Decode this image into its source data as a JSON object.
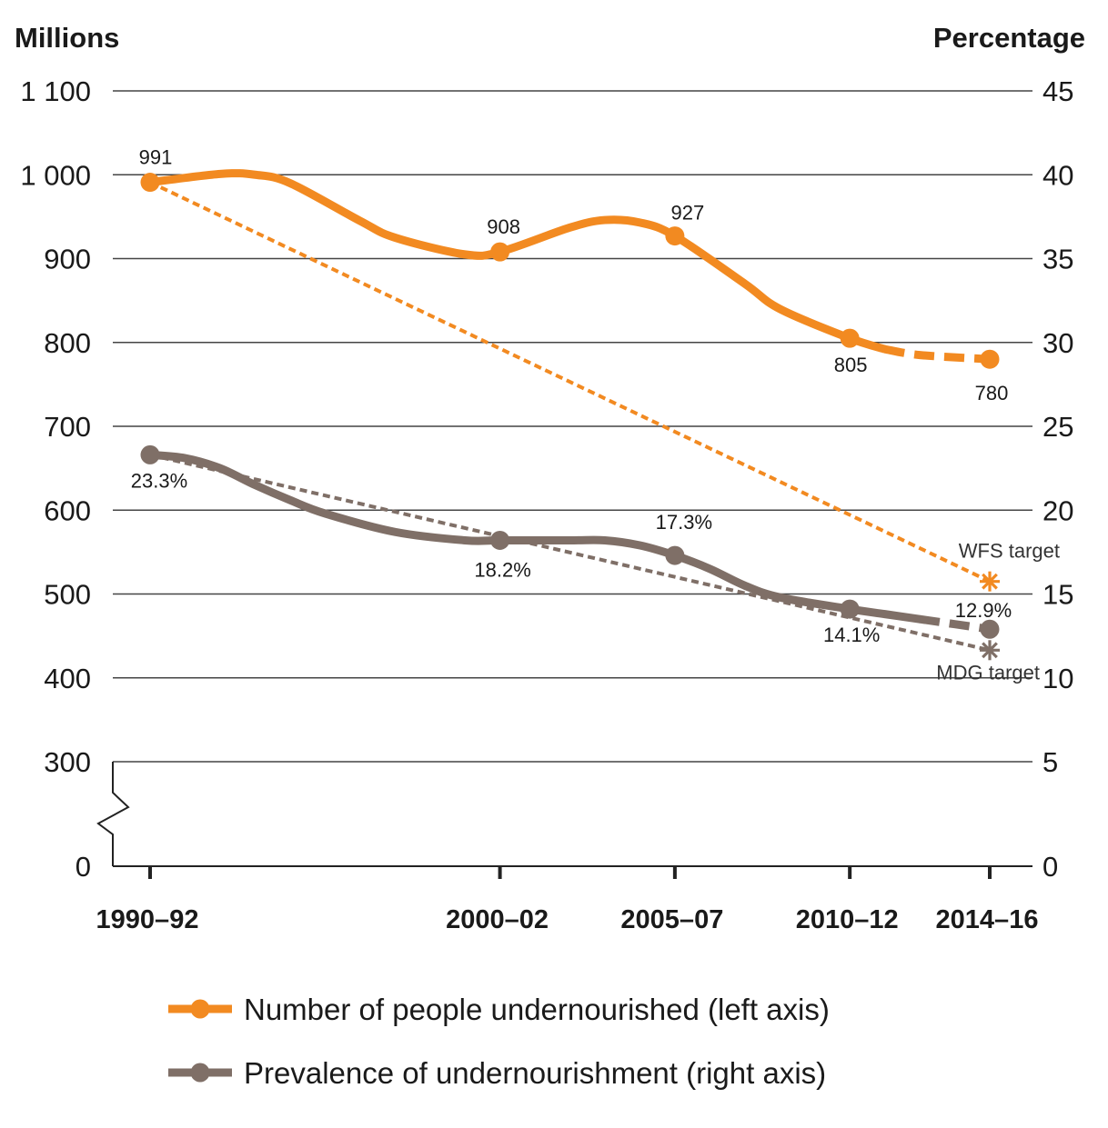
{
  "chart_data": {
    "type": "line",
    "left_axis_title": "Millions",
    "right_axis_title": "Percentage",
    "categories": [
      "1990–92",
      "2000–02",
      "2005–07",
      "2010–12",
      "2014–16"
    ],
    "x_years": [
      1991,
      2001,
      2006,
      2011,
      2015
    ],
    "left_axis": {
      "ticks": [
        0,
        300,
        400,
        500,
        600,
        700,
        800,
        900,
        1000,
        1100
      ],
      "tick_labels": [
        "0",
        "300",
        "400",
        "500",
        "600",
        "700",
        "800",
        "900",
        "1 000",
        "1 100"
      ],
      "broken_axis_between": [
        0,
        300
      ]
    },
    "right_axis": {
      "ticks": [
        0,
        5,
        10,
        15,
        20,
        25,
        30,
        35,
        40,
        45
      ],
      "tick_labels": [
        "0",
        "5",
        "10",
        "15",
        "20",
        "25",
        "30",
        "35",
        "40",
        "45"
      ]
    },
    "series": [
      {
        "name": "Number of people undernourished (left axis)",
        "axis": "left",
        "color": "#f28a21",
        "values": [
          991,
          908,
          927,
          805,
          780
        ],
        "value_labels": [
          "991",
          "908",
          "927",
          "805",
          "780"
        ],
        "curve": [
          [
            1991,
            991
          ],
          [
            1993,
            1001
          ],
          [
            1994,
            1000
          ],
          [
            1995,
            990
          ],
          [
            1997,
            945
          ],
          [
            1998,
            925
          ],
          [
            2000,
            905
          ],
          [
            2001,
            908
          ],
          [
            2003,
            937
          ],
          [
            2004,
            946
          ],
          [
            2005,
            943
          ],
          [
            2006,
            927
          ],
          [
            2008,
            870
          ],
          [
            2009,
            840
          ],
          [
            2011,
            805
          ],
          [
            2012,
            792
          ],
          [
            2013,
            785
          ],
          [
            2015,
            780
          ]
        ],
        "projected_from": 2012
      },
      {
        "name": "Prevalence of undernourishment (right axis)",
        "axis": "right",
        "color": "#7f6f67",
        "values": [
          23.3,
          18.2,
          17.3,
          14.1,
          12.9
        ],
        "value_labels": [
          "23.3%",
          "18.2%",
          "17.3%",
          "14.1%",
          "12.9%"
        ],
        "curve": [
          [
            1991,
            23.3
          ],
          [
            1992,
            23.1
          ],
          [
            1993,
            22.5
          ],
          [
            1994,
            21.5
          ],
          [
            1995,
            20.6
          ],
          [
            1996,
            19.8
          ],
          [
            1998,
            18.7
          ],
          [
            2000,
            18.2
          ],
          [
            2001,
            18.2
          ],
          [
            2003,
            18.2
          ],
          [
            2004,
            18.2
          ],
          [
            2005,
            17.9
          ],
          [
            2006,
            17.3
          ],
          [
            2007,
            16.5
          ],
          [
            2008,
            15.5
          ],
          [
            2009,
            14.8
          ],
          [
            2011,
            14.1
          ],
          [
            2012,
            13.8
          ],
          [
            2013,
            13.5
          ],
          [
            2015,
            12.9
          ]
        ],
        "projected_from": 2013
      }
    ],
    "targets": [
      {
        "label": "WFS target",
        "axis": "left",
        "color": "#f28a21",
        "from": [
          1991,
          991
        ],
        "to": [
          2015,
          515
        ]
      },
      {
        "label": "MDG target",
        "axis": "right",
        "color": "#7f6f67",
        "from": [
          1991,
          23.3
        ],
        "to": [
          2015,
          11.65
        ]
      }
    ],
    "legend": {
      "position": "bottom",
      "items": [
        {
          "label": "Number of people undernourished (left axis)",
          "color": "#f28a21"
        },
        {
          "label": "Prevalence of undernourishment (right axis)",
          "color": "#7f6f67"
        }
      ]
    },
    "grid": true
  }
}
